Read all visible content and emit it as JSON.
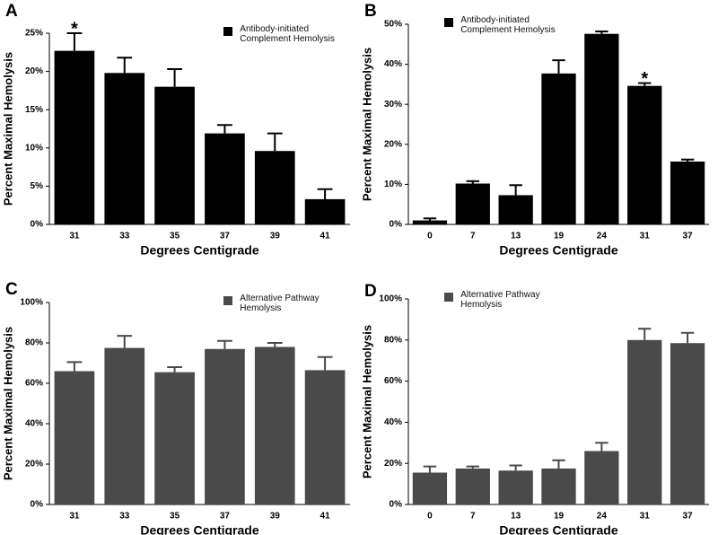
{
  "chart_data": [
    {
      "type": "bar",
      "label": "A",
      "xlabel": "Degrees Centigrade",
      "ylabel": "Percent Maximal Hemolysis",
      "categories": [
        "31",
        "33",
        "35",
        "37",
        "39",
        "41"
      ],
      "series": [
        {
          "name": "Antibody-initiated Complement Hemolysis",
          "color": "#000000",
          "values": [
            22.7,
            19.8,
            18,
            11.9,
            9.6,
            3.3
          ],
          "errors": [
            2.3,
            2,
            2.3,
            1.1,
            2.3,
            1.3
          ]
        }
      ],
      "annotations": [
        {
          "text": "*",
          "category": "31"
        }
      ],
      "ylim": [
        0,
        25
      ],
      "yticks": [
        {
          "value": 0,
          "label": "0%"
        },
        {
          "value": 5,
          "label": "5%"
        },
        {
          "value": 10,
          "label": "10%"
        },
        {
          "value": 15,
          "label": "15%"
        },
        {
          "value": 20,
          "label": "20%"
        },
        {
          "value": 25,
          "label": "25%"
        }
      ],
      "legend": "upper right",
      "grid": false
    },
    {
      "type": "bar",
      "label": "B",
      "xlabel": "Degrees Centigrade",
      "ylabel": "Percent Maximal Hemolysis",
      "categories": [
        "0",
        "7",
        "13",
        "19",
        "24",
        "31",
        "37"
      ],
      "series": [
        {
          "name": "Antibody-initiated Complement Hemolysis",
          "color": "#000000",
          "values": [
            1,
            10.2,
            7.3,
            37.7,
            47.6,
            34.6,
            15.7
          ],
          "errors": [
            0.5,
            0.6,
            2.5,
            3.3,
            0.6,
            0.7,
            0.5
          ]
        }
      ],
      "annotations": [
        {
          "text": "*",
          "category": "31"
        }
      ],
      "ylim": [
        0,
        50
      ],
      "yticks": [
        {
          "value": 0,
          "label": "0%"
        },
        {
          "value": 10,
          "label": "10%"
        },
        {
          "value": 20,
          "label": "20%"
        },
        {
          "value": 30,
          "label": "30%"
        },
        {
          "value": 40,
          "label": "40%"
        },
        {
          "value": 50,
          "label": "50%"
        }
      ],
      "legend": "upper left",
      "grid": false
    },
    {
      "type": "bar",
      "label": "C",
      "xlabel": "Degrees Centigrade",
      "ylabel": "Percent Maximal Hemolysis",
      "categories": [
        "31",
        "33",
        "35",
        "37",
        "39",
        "41"
      ],
      "series": [
        {
          "name": "Alternative Pathway Hemolysis",
          "color": "#4a4a4a",
          "values": [
            66,
            77.5,
            65.5,
            77,
            78,
            66.5
          ],
          "errors": [
            4.5,
            6,
            2.5,
            4,
            2,
            6.5
          ]
        }
      ],
      "ylim": [
        0,
        100
      ],
      "yticks": [
        {
          "value": 0,
          "label": "0%"
        },
        {
          "value": 20,
          "label": "20%"
        },
        {
          "value": 40,
          "label": "40%"
        },
        {
          "value": 60,
          "label": "60%"
        },
        {
          "value": 80,
          "label": "80%"
        },
        {
          "value": 100,
          "label": "100%"
        }
      ],
      "legend": "upper right",
      "grid": false
    },
    {
      "type": "bar",
      "label": "D",
      "xlabel": "Degrees Centigrade",
      "ylabel": "Percent Maximal Hemolysis",
      "categories": [
        "0",
        "7",
        "13",
        "19",
        "24",
        "31",
        "37"
      ],
      "series": [
        {
          "name": "Alternative Pathway Hemolysis",
          "color": "#4a4a4a",
          "values": [
            15.5,
            17.5,
            16.5,
            17.5,
            26,
            80,
            78.5
          ],
          "errors": [
            3,
            1,
            2.5,
            4,
            4,
            5.5,
            5
          ]
        }
      ],
      "ylim": [
        0,
        100
      ],
      "yticks": [
        {
          "value": 0,
          "label": "0%"
        },
        {
          "value": 20,
          "label": "20%"
        },
        {
          "value": 40,
          "label": "40%"
        },
        {
          "value": 60,
          "label": "60%"
        },
        {
          "value": 80,
          "label": "80%"
        },
        {
          "value": 100,
          "label": "100%"
        }
      ],
      "legend": "upper left",
      "grid": false
    }
  ]
}
